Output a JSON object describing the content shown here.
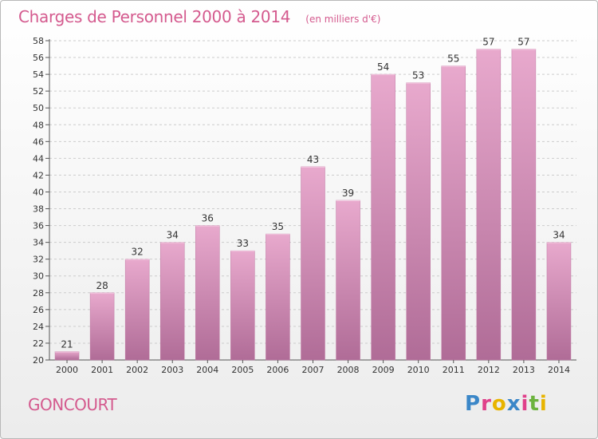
{
  "header": {
    "title": "Charges de Personnel 2000 à 2014",
    "unit": "(en milliers d'€)"
  },
  "footer": {
    "commune": "GONCOURT",
    "logo_text": "Proxiti",
    "logo_colors": [
      "#3b87c8",
      "#e0408a",
      "#e8b400",
      "#3b87c8",
      "#e0408a",
      "#6cb33e",
      "#e8b400"
    ]
  },
  "colors": {
    "accent": "#d45a8e",
    "bar_top": "#e8a9cd",
    "bar_bottom": "#b06c97",
    "grid": "#cccccc"
  },
  "chart_data": {
    "type": "bar",
    "title": "Charges de Personnel 2000 à 2014",
    "subtitle": "(en milliers d'€)",
    "categories": [
      "2000",
      "2001",
      "2002",
      "2003",
      "2004",
      "2005",
      "2006",
      "2007",
      "2008",
      "2009",
      "2010",
      "2011",
      "2012",
      "2013",
      "2014"
    ],
    "values": [
      21,
      28,
      32,
      34,
      36,
      33,
      35,
      43,
      39,
      54,
      53,
      55,
      57,
      57,
      34
    ],
    "ylim": [
      20,
      58
    ],
    "yticks": [
      20,
      22,
      24,
      26,
      28,
      30,
      32,
      34,
      36,
      38,
      40,
      42,
      44,
      46,
      48,
      50,
      52,
      54,
      56,
      58
    ],
    "grid": true,
    "legend": "none"
  }
}
